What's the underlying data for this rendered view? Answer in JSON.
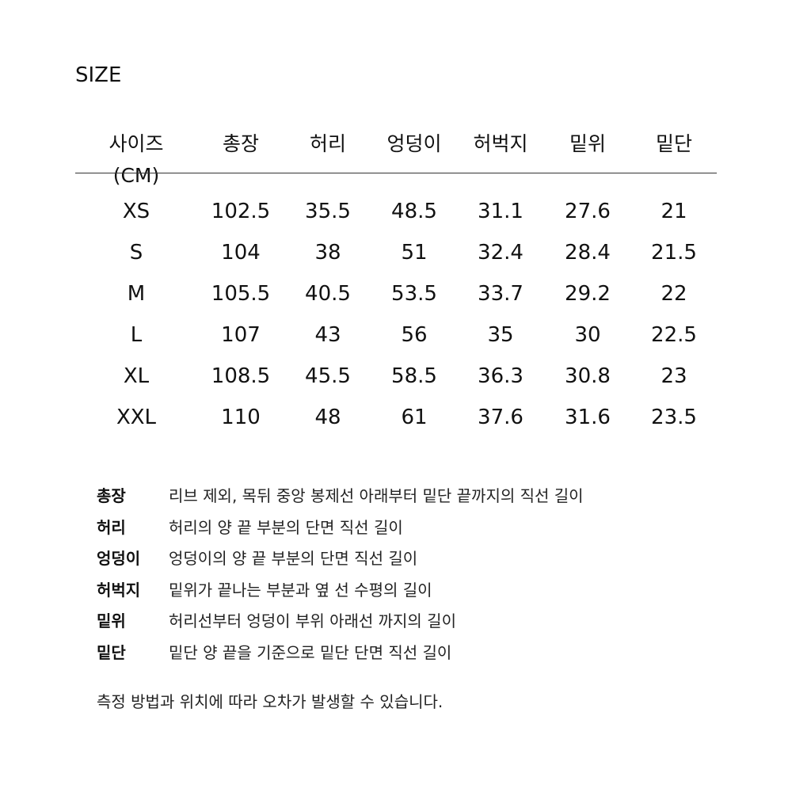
{
  "title": "SIZE",
  "table": {
    "headers": [
      "사이즈(CM)",
      "총장",
      "허리",
      "엉덩이",
      "허벅지",
      "밑위",
      "밑단"
    ],
    "rows": [
      [
        "XS",
        "102.5",
        "35.5",
        "48.5",
        "31.1",
        "27.6",
        "21"
      ],
      [
        "S",
        "104",
        "38",
        "51",
        "32.4",
        "28.4",
        "21.5"
      ],
      [
        "M",
        "105.5",
        "40.5",
        "53.5",
        "33.7",
        "29.2",
        "22"
      ],
      [
        "L",
        "107",
        "43",
        "56",
        "35",
        "30",
        "22.5"
      ],
      [
        "XL",
        "108.5",
        "45.5",
        "58.5",
        "36.3",
        "30.8",
        "23"
      ],
      [
        "XXL",
        "110",
        "48",
        "61",
        "37.6",
        "31.6",
        "23.5"
      ]
    ]
  },
  "notes": [
    {
      "label": "총장",
      "desc": "리브 제외, 목뒤 중앙 봉제선 아래부터 밑단 끝까지의 직선 길이"
    },
    {
      "label": "허리",
      "desc": "허리의 양 끝 부분의 단면 직선 길이"
    },
    {
      "label": "엉덩이",
      "desc": "엉덩이의 양 끝 부분의 단면 직선 길이"
    },
    {
      "label": "허벅지",
      "desc": "밑위가 끝나는 부분과 옆 선 수평의 길이"
    },
    {
      "label": "밑위",
      "desc": "허리선부터 엉덩이 부위 아래선 까지의 길이"
    },
    {
      "label": "밑단",
      "desc": "밑단 양 끝을 기준으로 밑단 단면 직선 길이"
    }
  ],
  "footer": "측정 방법과 위치에 따라 오차가 발생할 수 있습니다."
}
